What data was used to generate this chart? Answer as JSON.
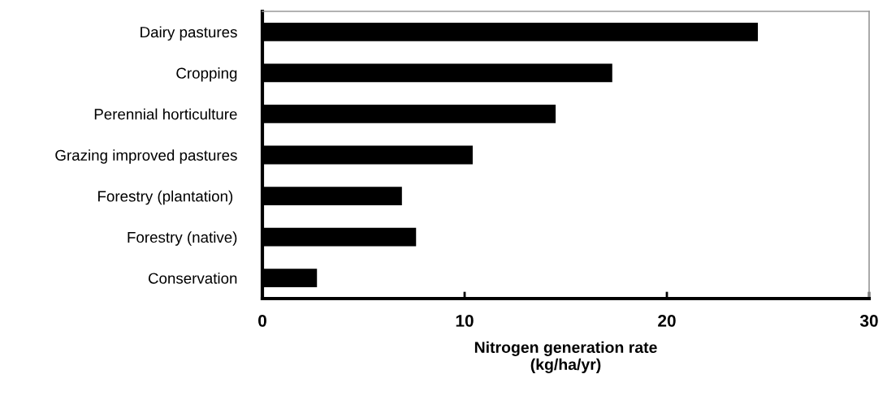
{
  "chart_data": {
    "type": "bar",
    "orientation": "horizontal",
    "categories": [
      "Dairy pastures",
      "Cropping",
      "Perennial horticulture",
      "Grazing improved pastures",
      "Forestry (plantation) ",
      "Forestry (native)",
      "Conservation"
    ],
    "values": [
      24.5,
      17.3,
      14.5,
      10.4,
      6.9,
      7.6,
      2.7
    ],
    "color": "#000000",
    "xlabel": "Nitrogen generation rate\n(kg/ha/yr)",
    "xlim": [
      0,
      30
    ],
    "xticks": [
      0,
      10,
      20,
      30
    ],
    "grid": false
  }
}
